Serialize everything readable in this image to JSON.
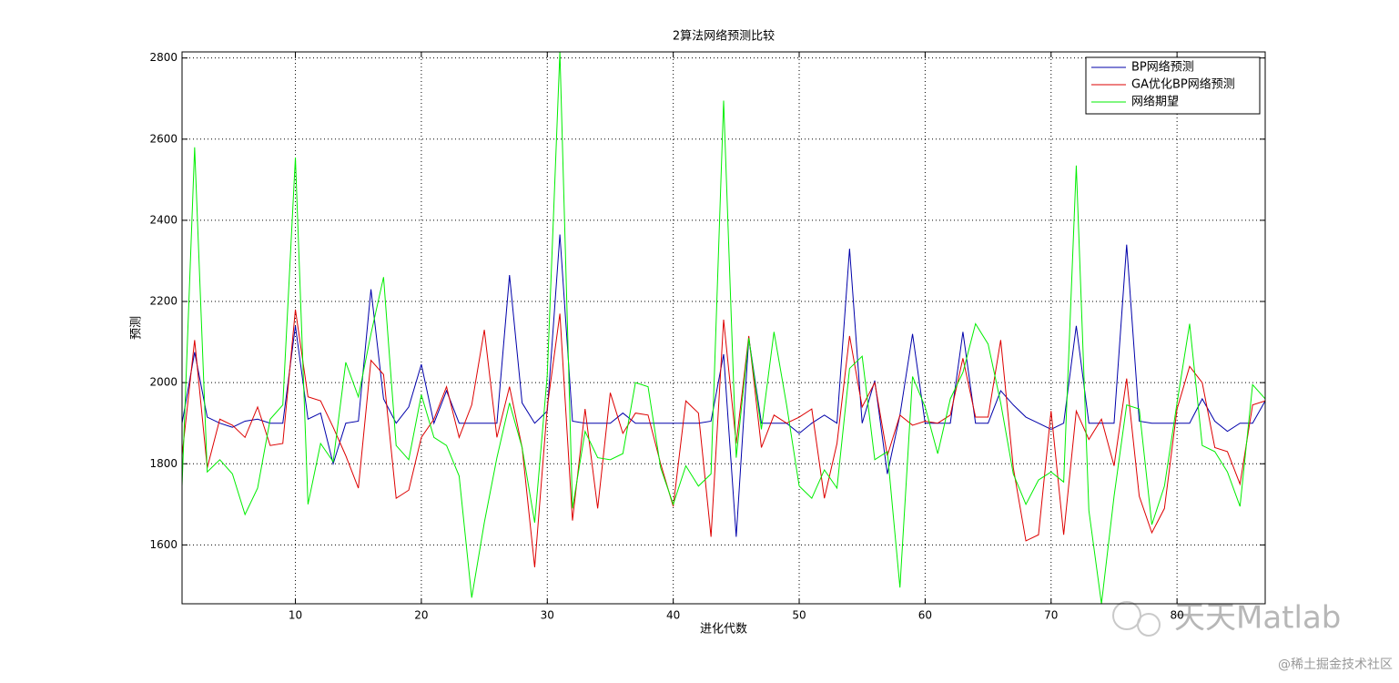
{
  "chart_data": {
    "type": "line",
    "title": "2算法网络预测比较",
    "xlabel": "进化代数",
    "ylabel": "预测",
    "x": [
      1,
      2,
      3,
      4,
      5,
      6,
      7,
      8,
      9,
      10,
      11,
      12,
      13,
      14,
      15,
      16,
      17,
      18,
      19,
      20,
      21,
      22,
      23,
      24,
      25,
      26,
      27,
      28,
      29,
      30,
      31,
      32,
      33,
      34,
      35,
      36,
      37,
      38,
      39,
      40,
      41,
      42,
      43,
      44,
      45,
      46,
      47,
      48,
      49,
      50,
      51,
      52,
      53,
      54,
      55,
      56,
      57,
      58,
      59,
      60,
      61,
      62,
      63,
      64,
      65,
      66,
      67,
      68,
      69,
      70,
      71,
      72,
      73,
      74,
      75,
      76,
      77,
      78,
      79,
      80,
      81,
      82,
      83,
      84,
      85,
      86,
      87
    ],
    "series": [
      {
        "name": "BP网络预测",
        "color": "#0000aa",
        "values": [
          1900,
          2075,
          1915,
          1900,
          1890,
          1905,
          1910,
          1900,
          1900,
          2140,
          1910,
          1925,
          1800,
          1900,
          1905,
          2230,
          1960,
          1900,
          1940,
          2045,
          1900,
          1980,
          1900,
          1900,
          1900,
          1900,
          2265,
          1950,
          1900,
          1930,
          2365,
          1905,
          1900,
          1900,
          1900,
          1925,
          1900,
          1900,
          1900,
          1900,
          1900,
          1900,
          1905,
          2070,
          1620,
          2110,
          1900,
          1900,
          1900,
          1875,
          1900,
          1920,
          1900,
          2330,
          1900,
          2005,
          1775,
          1920,
          2120,
          1900,
          1900,
          1900,
          2125,
          1900,
          1900,
          1980,
          1945,
          1915,
          1900,
          1885,
          1900,
          2140,
          1900,
          1900,
          1900,
          2340,
          1905,
          1900,
          1900,
          1900,
          1900,
          1960,
          1905,
          1880,
          1900,
          1900,
          1955
        ]
      },
      {
        "name": "GA优化BP网络预测",
        "color": "#dd0000",
        "values": [
          1820,
          2105,
          1790,
          1910,
          1895,
          1865,
          1940,
          1845,
          1850,
          2180,
          1965,
          1955,
          1890,
          1820,
          1740,
          2055,
          2020,
          1715,
          1735,
          1865,
          1910,
          1990,
          1865,
          1945,
          2130,
          1865,
          1990,
          1840,
          1545,
          1940,
          2170,
          1660,
          1935,
          1690,
          1975,
          1875,
          1925,
          1920,
          1800,
          1695,
          1955,
          1925,
          1620,
          2155,
          1850,
          2115,
          1840,
          1920,
          1900,
          1915,
          1935,
          1715,
          1850,
          2115,
          1940,
          2000,
          1820,
          1920,
          1895,
          1905,
          1900,
          1920,
          2060,
          1915,
          1915,
          2105,
          1790,
          1610,
          1625,
          1930,
          1625,
          1930,
          1860,
          1910,
          1795,
          2010,
          1720,
          1630,
          1690,
          1935,
          2040,
          2000,
          1840,
          1830,
          1750,
          1945,
          1955
        ]
      },
      {
        "name": "网络期望",
        "color": "#00ee00",
        "values": [
          1745,
          2580,
          1780,
          1810,
          1775,
          1675,
          1740,
          1910,
          1945,
          2555,
          1700,
          1850,
          1805,
          2050,
          1965,
          2120,
          2260,
          1845,
          1810,
          1970,
          1865,
          1845,
          1770,
          1470,
          1655,
          1815,
          1950,
          1840,
          1655,
          2020,
          2815,
          1690,
          1880,
          1815,
          1810,
          1825,
          2000,
          1990,
          1790,
          1700,
          1795,
          1745,
          1775,
          2695,
          1815,
          2110,
          1885,
          2125,
          1945,
          1745,
          1715,
          1785,
          1740,
          2035,
          2065,
          1810,
          1830,
          1495,
          2015,
          1940,
          1825,
          1960,
          2025,
          2145,
          2095,
          1950,
          1775,
          1700,
          1760,
          1780,
          1755,
          2535,
          1685,
          1455,
          1720,
          1945,
          1935,
          1650,
          1745,
          1950,
          2145,
          1845,
          1830,
          1780,
          1695,
          1995,
          1960
        ]
      }
    ],
    "xlim": [
      1,
      87
    ],
    "xticks": [
      10,
      20,
      30,
      40,
      50,
      60,
      70,
      80
    ],
    "ylim": [
      1455,
      2815
    ],
    "yticks": [
      1600,
      1800,
      2000,
      2200,
      2400,
      2600,
      2800
    ],
    "grid": true,
    "legend": "upper right",
    "watermark": "天天Matlab",
    "credit": "@稀土掘金技术社区"
  }
}
